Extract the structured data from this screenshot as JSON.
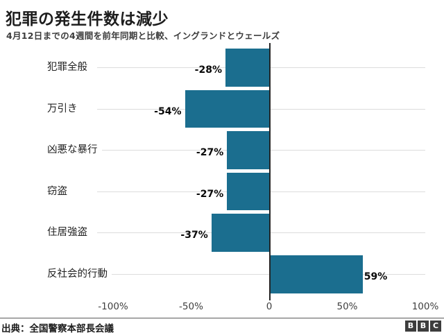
{
  "chart_data": {
    "type": "bar",
    "orientation": "horizontal",
    "title": "犯罪の発生件数は減少",
    "subtitle": "4月12日までの4週間を前年同期と比較、イングランドとウェールズ",
    "categories": [
      "犯罪全般",
      "万引き",
      "凶悪な暴行",
      "窃盗",
      "住居強盗",
      "反社会的行動"
    ],
    "values": [
      -28,
      -54,
      -27,
      -27,
      -37,
      59
    ],
    "value_labels": [
      "-28%",
      "-54%",
      "-27%",
      "-27%",
      "-37%",
      "59%"
    ],
    "x_ticks": [
      "-100%",
      "-50%",
      "0",
      "50%",
      "100%"
    ],
    "x_tick_values": [
      -100,
      -50,
      0,
      50,
      100
    ],
    "xlim": [
      -100,
      100
    ],
    "grid": "horizontal-row-lines",
    "legend": "none",
    "bar_color": "#1b6e8f",
    "gridline_color": "#dcdcdc",
    "zero_line_color": "#262626"
  },
  "footer": {
    "source": "出典：全国警察本部長会議",
    "logo_letters": [
      "B",
      "B",
      "C"
    ]
  }
}
